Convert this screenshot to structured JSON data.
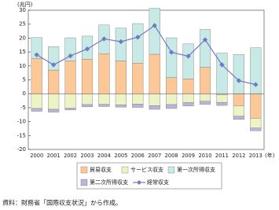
{
  "chart_data": {
    "type": "bar",
    "stacked": true,
    "y_label": "(兆円)",
    "x_label": "(年)",
    "source": "資料：財務省「国際収支状況」から作成。",
    "categories": [
      "2000",
      "2001",
      "2002",
      "2003",
      "2004",
      "2005",
      "2006",
      "2007",
      "2008",
      "2009",
      "2010",
      "2011",
      "2012",
      "2013"
    ],
    "series": [
      {
        "name": "貿易収支",
        "type": "bar",
        "color": "#fcc898",
        "values": [
          12.6,
          8.5,
          11.8,
          12.4,
          14.4,
          11.8,
          11.0,
          14.2,
          5.8,
          5.3,
          9.5,
          -0.3,
          -4.3,
          -8.8
        ]
      },
      {
        "name": "サービス収支",
        "type": "bar",
        "color": "#eef3c6",
        "values": [
          -5.3,
          -5.6,
          -5.2,
          -3.9,
          -3.8,
          -4.0,
          -3.7,
          -4.3,
          -3.9,
          -3.2,
          -2.7,
          -2.8,
          -3.8,
          -3.5
        ]
      },
      {
        "name": "第一次所得収支",
        "type": "bar",
        "color": "#c8eae6",
        "values": [
          7.6,
          8.4,
          8.3,
          8.3,
          10.3,
          11.8,
          14.2,
          16.5,
          14.3,
          12.6,
          13.6,
          14.6,
          14.1,
          16.5
        ]
      },
      {
        "name": "第二次所得収支",
        "type": "bar",
        "color": "#b9b5dd",
        "values": [
          -1.0,
          -1.0,
          -0.6,
          -0.8,
          -0.8,
          -0.8,
          -1.2,
          -1.3,
          -1.4,
          -1.2,
          -1.1,
          -1.1,
          -1.1,
          -1.0
        ]
      },
      {
        "name": "経常収支",
        "type": "line",
        "color": "#7478c4",
        "values": [
          14.0,
          10.4,
          13.6,
          16.1,
          19.7,
          18.7,
          20.3,
          24.5,
          14.9,
          13.5,
          19.4,
          10.4,
          4.7,
          3.3
        ]
      }
    ],
    "ylim": [
      -20,
      30
    ],
    "yticks": [
      -20,
      -15,
      -10,
      -5,
      0,
      5,
      10,
      15,
      20,
      25,
      30
    ]
  }
}
